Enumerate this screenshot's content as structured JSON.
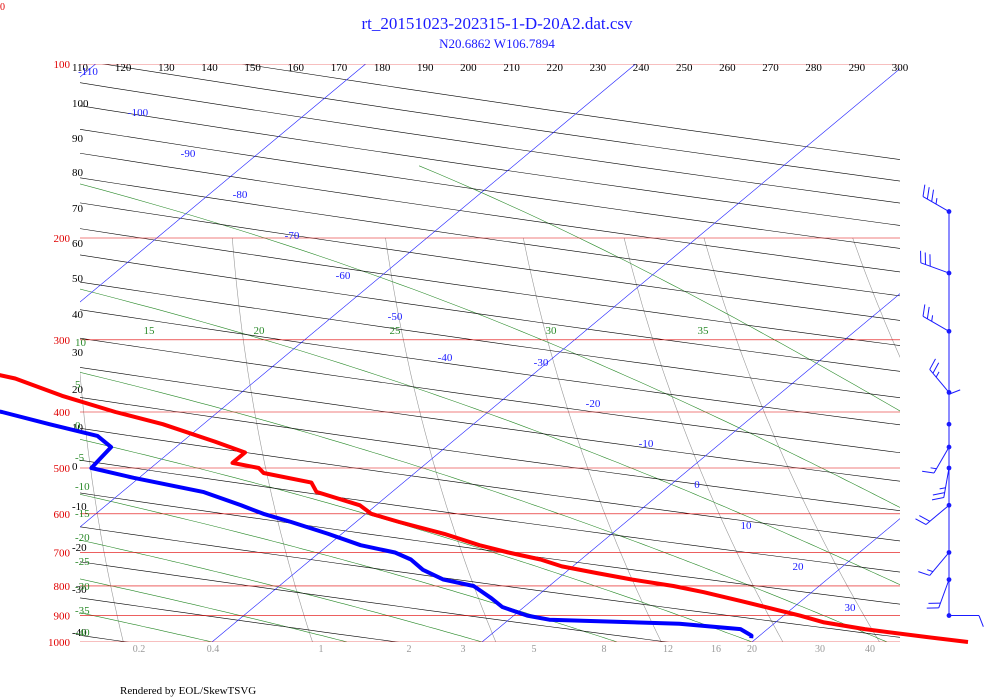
{
  "header": {
    "title": "rt_20151023-202315-1-D-20A2.dat.csv",
    "subtitle": "N20.6862 W106.7894",
    "footer": "Rendered by EOL/SkewTSVG",
    "corner_label": "0"
  },
  "chart_data": {
    "type": "line",
    "title": "rt_20151023-202315-1-D-20A2.dat.csv",
    "subtitle": "N20.6862 W106.7894",
    "y_scale": "log-pressure",
    "pressure_range_hPa": [
      1000,
      100
    ],
    "pressure_ticks": [
      1000,
      900,
      800,
      700,
      600,
      500,
      400,
      300,
      200,
      100
    ],
    "potential_temp_ticks_K": [
      110,
      120,
      130,
      140,
      150,
      160,
      170,
      180,
      190,
      200,
      210,
      220,
      230,
      240,
      250,
      260,
      270,
      280,
      290,
      300
    ],
    "isotherm_labels_C": [
      -110,
      -100,
      -90,
      -80,
      -70,
      -60,
      -50,
      -40,
      -30,
      -20,
      -10,
      0,
      10,
      20,
      30
    ],
    "dry_adiabat_labels_C": [
      100,
      90,
      80,
      70,
      60,
      50,
      40,
      30,
      20,
      10,
      0,
      -10,
      -20,
      -30,
      -40
    ],
    "moist_adiabat_labels_C": [
      10,
      5,
      0,
      -5,
      -10,
      -15,
      -20,
      -25,
      -30,
      -35,
      -40
    ],
    "theta_e_labels": [
      15,
      20,
      25,
      30,
      35
    ],
    "mixing_ratio_labels": [
      "0.2",
      "0.4",
      "1",
      "2",
      "3",
      "5",
      "8",
      "12",
      "16",
      "20",
      "30",
      "40"
    ],
    "colors": {
      "temperature": "#ff0000",
      "dewpoint": "#0000ff",
      "isobars": "#e00000",
      "isotherms": "#1a1aff",
      "dry_adiabats": "#000000",
      "moist_adiabats": "#2a8a2a",
      "mixing_ratio": "#999999",
      "wind": "#1a1aff"
    },
    "series": [
      {
        "name": "Temperature",
        "points": [
          [
            1000,
            28.0
          ],
          [
            980,
            26.2
          ],
          [
            950,
            23.6
          ],
          [
            925,
            21.8
          ],
          [
            900,
            20.6
          ],
          [
            880,
            19.5
          ],
          [
            850,
            17.8
          ],
          [
            820,
            16.0
          ],
          [
            800,
            14.6
          ],
          [
            780,
            12.8
          ],
          [
            760,
            11.2
          ],
          [
            740,
            9.6
          ],
          [
            720,
            8.5
          ],
          [
            700,
            7.0
          ],
          [
            680,
            5.6
          ],
          [
            650,
            3.8
          ],
          [
            620,
            1.6
          ],
          [
            600,
            0.2
          ],
          [
            580,
            -0.6
          ],
          [
            550,
            -2.8
          ],
          [
            530,
            -3.4
          ],
          [
            510,
            -5.6
          ],
          [
            500,
            -6.0
          ],
          [
            490,
            -7.2
          ],
          [
            470,
            -7.2
          ],
          [
            450,
            -8.8
          ],
          [
            420,
            -11.5
          ],
          [
            400,
            -13.8
          ],
          [
            375,
            -16.5
          ],
          [
            350,
            -19.0
          ],
          [
            330,
            -22.2
          ],
          [
            300,
            -26.5
          ],
          [
            280,
            -30.0
          ],
          [
            250,
            -34.5
          ],
          [
            230,
            -38.0
          ],
          [
            210,
            -41.2
          ],
          [
            200,
            -43.5
          ],
          [
            185,
            -46.0
          ]
        ]
      },
      {
        "name": "Dewpoint",
        "points": [
          [
            985,
            19.8
          ],
          [
            975,
            19.7
          ],
          [
            950,
            19.0
          ],
          [
            930,
            16.5
          ],
          [
            915,
            11.5
          ],
          [
            900,
            10.5
          ],
          [
            870,
            9.2
          ],
          [
            840,
            8.4
          ],
          [
            800,
            7.2
          ],
          [
            780,
            5.8
          ],
          [
            750,
            4.6
          ],
          [
            720,
            3.7
          ],
          [
            700,
            2.8
          ],
          [
            680,
            1.2
          ],
          [
            650,
            -0.5
          ],
          [
            620,
            -2.4
          ],
          [
            600,
            -3.8
          ],
          [
            580,
            -5.0
          ],
          [
            550,
            -7.0
          ],
          [
            520,
            -10.2
          ],
          [
            500,
            -12.2
          ],
          [
            480,
            -12.3
          ],
          [
            460,
            -12.4
          ],
          [
            440,
            -13.4
          ],
          [
            420,
            -15.7
          ],
          [
            400,
            -18.0
          ],
          [
            380,
            -21.0
          ],
          [
            360,
            -25.0
          ],
          [
            340,
            -29.5
          ],
          [
            320,
            -34.0
          ],
          [
            300,
            -37.8
          ],
          [
            290,
            -40.5
          ],
          [
            280,
            -43.5
          ],
          [
            270,
            -46.0
          ],
          [
            260,
            -48.5
          ],
          [
            250,
            -51.0
          ],
          [
            240,
            -53.5
          ],
          [
            230,
            -56.0
          ],
          [
            220,
            -58.5
          ],
          [
            210,
            -61.0
          ],
          [
            200,
            -63.5
          ],
          [
            190,
            -66.5
          ],
          [
            185,
            -68.0
          ]
        ]
      }
    ],
    "wind_barbs": [
      {
        "pressure": 180,
        "direction_deg": 300,
        "speed_kt": 35
      },
      {
        "pressure": 230,
        "direction_deg": 290,
        "speed_kt": 30
      },
      {
        "pressure": 290,
        "direction_deg": 300,
        "speed_kt": 25
      },
      {
        "pressure": 370,
        "direction_deg": 320,
        "speed_kt": 25
      },
      {
        "pressure": 420,
        "direction_deg": 360,
        "speed_kt": 10
      },
      {
        "pressure": 460,
        "direction_deg": 210,
        "speed_kt": 15
      },
      {
        "pressure": 500,
        "direction_deg": 190,
        "speed_kt": 25
      },
      {
        "pressure": 580,
        "direction_deg": 230,
        "speed_kt": 20
      },
      {
        "pressure": 700,
        "direction_deg": 220,
        "speed_kt": 15
      },
      {
        "pressure": 780,
        "direction_deg": 200,
        "speed_kt": 20
      },
      {
        "pressure": 900,
        "direction_deg": 90,
        "speed_kt": 10
      }
    ]
  }
}
